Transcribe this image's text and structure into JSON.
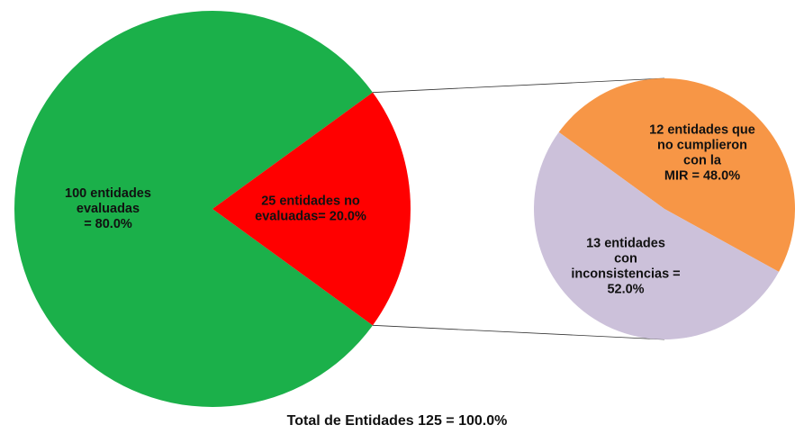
{
  "chart_data": {
    "type": "pie-of-pie",
    "title": "Total de Entidades 125 = 100.0%",
    "main": {
      "values": [
        100,
        25
      ],
      "colors": [
        "#1bb04a",
        "#ff0000"
      ],
      "value_labels": [
        "100 entidades\nevaluadas\n= 80.0%",
        "25 entidades no\nevaluadas= 20.0%"
      ]
    },
    "secondary": {
      "values": [
        12,
        13
      ],
      "colors": [
        "#f79646",
        "#ccc1da"
      ],
      "value_labels": [
        "12 entidades que\nno cumplieron\ncon la\nMIR = 48.0%",
        "13 entidades\ncon\ninconsistencias =\n52.0%"
      ]
    }
  }
}
